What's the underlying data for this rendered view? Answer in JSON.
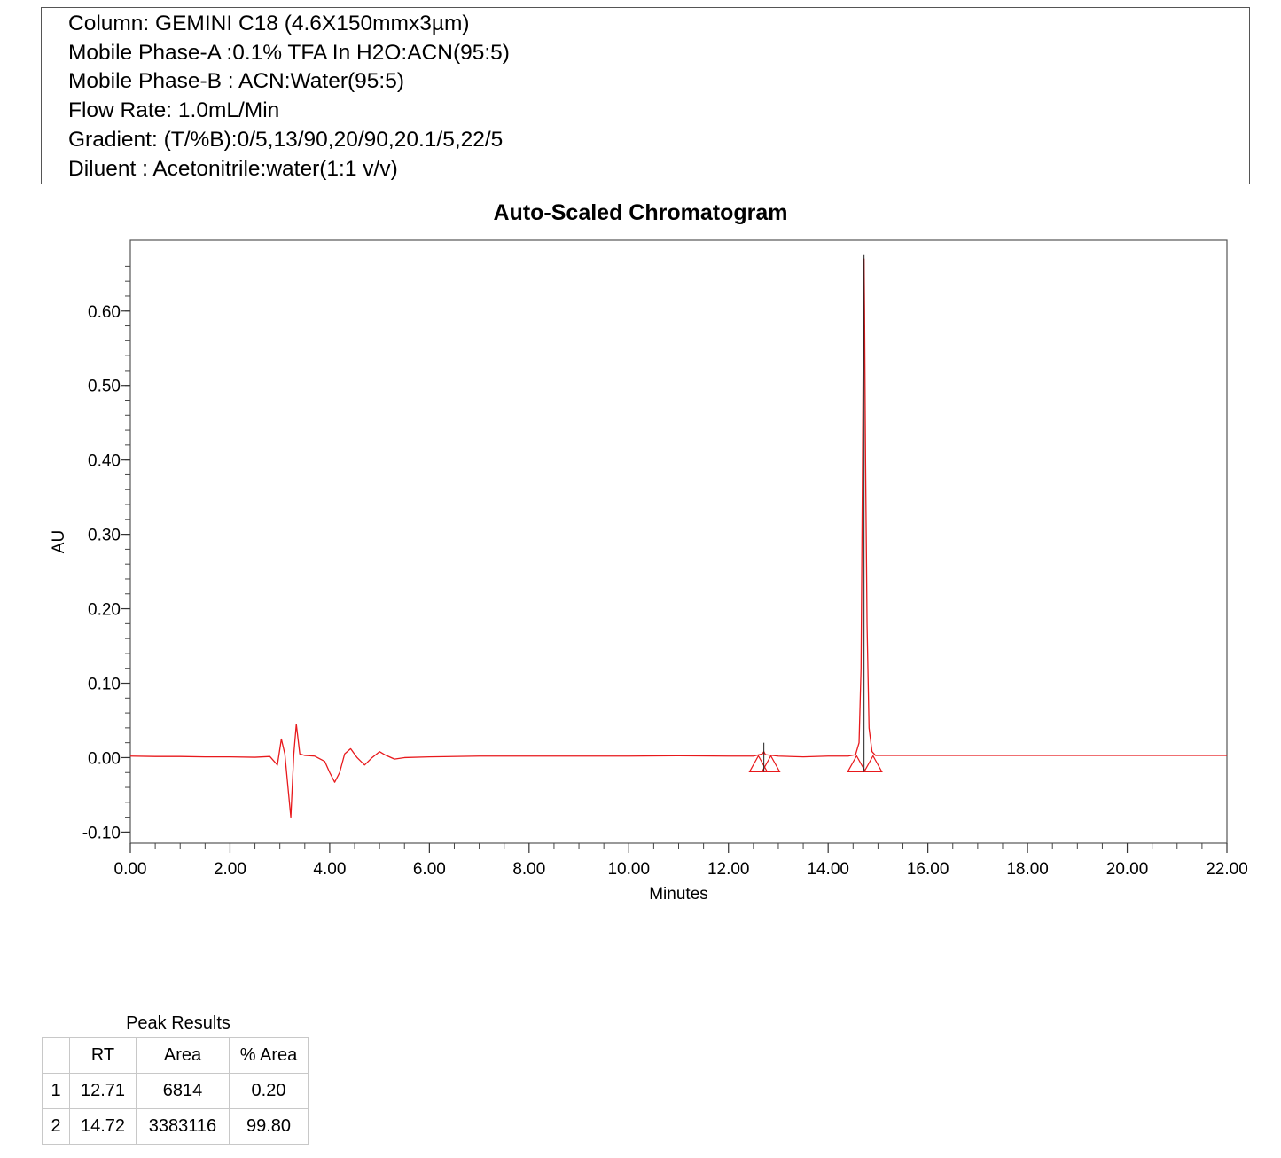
{
  "method_info": {
    "column": "Column: GEMINI C18 (4.6X150mmx3µm)",
    "mobile_phase_a": "Mobile Phase-A :0.1% TFA In H2O:ACN(95:5)",
    "mobile_phase_b": "Mobile Phase-B : ACN:Water(95:5)",
    "flow_rate": "Flow Rate: 1.0mL/Min",
    "gradient": "Gradient: (T/%B):0/5,13/90,20/90,20.1/5,22/5",
    "diluent": "Diluent : Acetonitrile:water(1:1 v/v)"
  },
  "chart_data": {
    "type": "line",
    "title": "Auto-Scaled Chromatogram",
    "xlabel": "Minutes",
    "ylabel": "AU",
    "xlim": [
      0,
      22
    ],
    "ylim": [
      -0.115,
      0.695
    ],
    "x_ticks": [
      "0.00",
      "2.00",
      "4.00",
      "6.00",
      "8.00",
      "10.00",
      "12.00",
      "14.00",
      "16.00",
      "18.00",
      "20.00",
      "22.00"
    ],
    "y_ticks": [
      "-0.10",
      "0.00",
      "0.10",
      "0.20",
      "0.30",
      "0.40",
      "0.50",
      "0.60"
    ],
    "line_color": "#e8191c",
    "series": [
      {
        "x": [
          0,
          0.5,
          1,
          1.5,
          2,
          2.5,
          2.8,
          2.95,
          3.03,
          3.1,
          3.17,
          3.22,
          3.28,
          3.33,
          3.4,
          3.5,
          3.7,
          3.9,
          4.0,
          4.1,
          4.2,
          4.3,
          4.42,
          4.55,
          4.7,
          4.85,
          5.0,
          5.1,
          5.3,
          5.5,
          6,
          7,
          8,
          9,
          10,
          11,
          12,
          12.5,
          12.68,
          12.71,
          12.74,
          13,
          13.5,
          14,
          14.4,
          14.55,
          14.62,
          14.66,
          14.69,
          14.71,
          14.72,
          14.73,
          14.75,
          14.78,
          14.82,
          14.88,
          14.95,
          15.1,
          15.5,
          16,
          17,
          18,
          19,
          20,
          21,
          22
        ],
        "y": [
          0.002,
          0.0015,
          0.0015,
          0.001,
          0.001,
          0.0005,
          0.0015,
          -0.01,
          0.025,
          0.005,
          -0.045,
          -0.08,
          0.005,
          0.045,
          0.005,
          0.003,
          0.002,
          -0.005,
          -0.02,
          -0.033,
          -0.02,
          0.005,
          0.012,
          0.0,
          -0.01,
          0.0,
          0.008,
          0.004,
          -0.002,
          0.0,
          0.001,
          0.002,
          0.002,
          0.002,
          0.002,
          0.0025,
          0.002,
          0.002,
          0.005,
          0.008,
          0.004,
          0.002,
          0.001,
          0.002,
          0.002,
          0.004,
          0.02,
          0.12,
          0.4,
          0.6,
          0.67,
          0.6,
          0.4,
          0.18,
          0.04,
          0.008,
          0.003,
          0.003,
          0.003,
          0.003,
          0.003,
          0.003,
          0.003,
          0.003,
          0.003,
          0.003
        ]
      }
    ],
    "peak_marks": [
      {
        "start": 12.6,
        "end": 12.85,
        "apex": 12.71
      },
      {
        "start": 14.57,
        "end": 14.9,
        "apex": 14.72
      }
    ]
  },
  "peak_table": {
    "caption": "Peak Results",
    "headers": [
      "",
      "RT",
      "Area",
      "% Area"
    ],
    "rows": [
      [
        "1",
        "12.71",
        "6814",
        "0.20"
      ],
      [
        "2",
        "14.72",
        "3383116",
        "99.80"
      ]
    ]
  }
}
